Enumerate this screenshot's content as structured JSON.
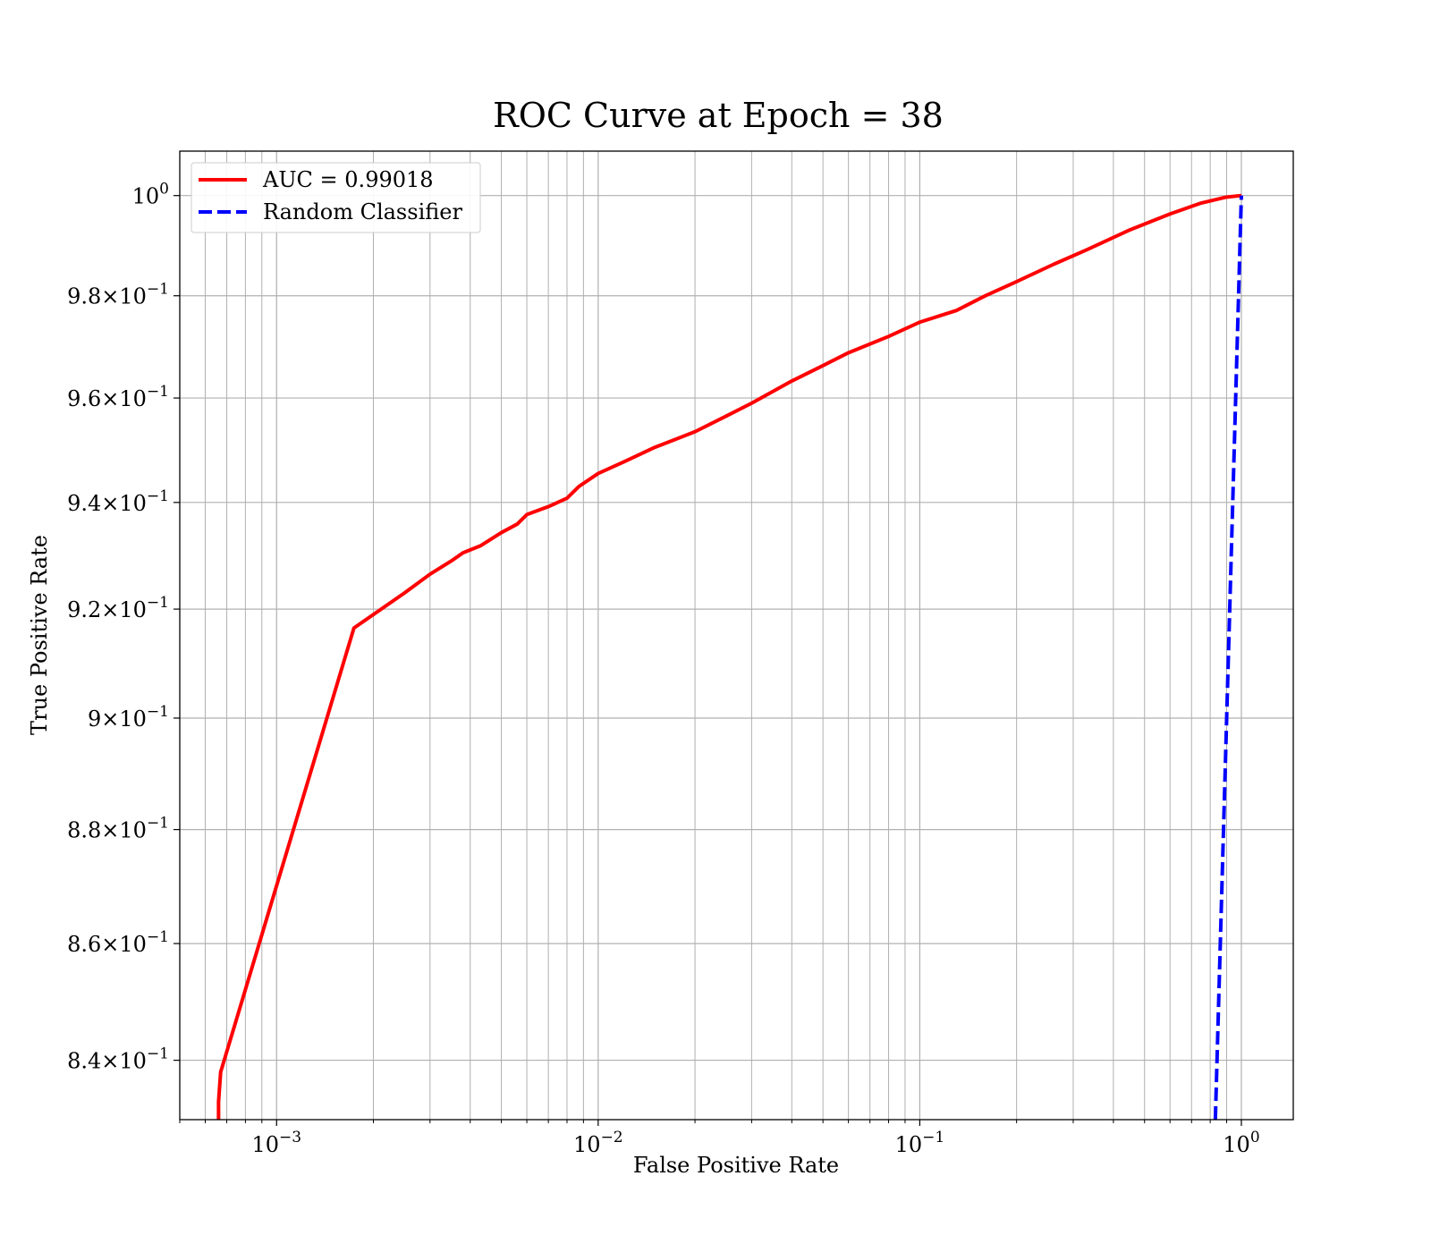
{
  "chart_data": {
    "type": "line",
    "title": "ROC Curve at Epoch = 38",
    "xlabel": "False Positive Rate",
    "ylabel": "True Positive Rate",
    "xscale": "log",
    "yscale": "log",
    "xlim": [
      0.0005,
      1.45
    ],
    "ylim": [
      0.83,
      1.009
    ],
    "grid": true,
    "grid_which": "both",
    "legend_position": "upper left",
    "x_ticks": [
      {
        "value": 0.001,
        "base": "10",
        "exp": "−3"
      },
      {
        "value": 0.01,
        "base": "10",
        "exp": "−2"
      },
      {
        "value": 0.1,
        "base": "10",
        "exp": "−1"
      },
      {
        "value": 1,
        "base": "10",
        "exp": "0"
      }
    ],
    "y_ticks": [
      {
        "value": 0.84,
        "mant": "8.4",
        "base": "10",
        "exp": "−1"
      },
      {
        "value": 0.86,
        "mant": "8.6",
        "base": "10",
        "exp": "−1"
      },
      {
        "value": 0.88,
        "mant": "8.8",
        "base": "10",
        "exp": "−1"
      },
      {
        "value": 0.9,
        "mant": "9",
        "base": "10",
        "exp": "−1"
      },
      {
        "value": 0.92,
        "mant": "9.2",
        "base": "10",
        "exp": "−1"
      },
      {
        "value": 0.94,
        "mant": "9.4",
        "base": "10",
        "exp": "−1"
      },
      {
        "value": 0.96,
        "mant": "9.6",
        "base": "10",
        "exp": "−1"
      },
      {
        "value": 0.98,
        "mant": "9.8",
        "base": "10",
        "exp": "−1"
      },
      {
        "value": 1.0,
        "mant": "",
        "base": "10",
        "exp": "0"
      }
    ],
    "series": [
      {
        "name": "AUC = 0.99018",
        "color": "#ff0000",
        "style": "solid",
        "x": [
          0.00066,
          0.00066,
          0.00067,
          0.00174,
          0.0025,
          0.003,
          0.0035,
          0.0038,
          0.0043,
          0.005,
          0.0056,
          0.006,
          0.007,
          0.008,
          0.0087,
          0.01,
          0.012,
          0.015,
          0.02,
          0.025,
          0.03,
          0.04,
          0.05,
          0.06,
          0.08,
          0.1,
          0.13,
          0.16,
          0.2,
          0.26,
          0.33,
          0.45,
          0.6,
          0.75,
          0.9,
          1.0
        ],
        "y": [
          0.83,
          0.833,
          0.838,
          0.9165,
          0.923,
          0.9265,
          0.929,
          0.9305,
          0.9318,
          0.9343,
          0.9359,
          0.9377,
          0.9392,
          0.9408,
          0.943,
          0.9455,
          0.9477,
          0.9505,
          0.9535,
          0.9565,
          0.959,
          0.9633,
          0.9663,
          0.9688,
          0.972,
          0.9748,
          0.9771,
          0.98,
          0.9828,
          0.9862,
          0.9891,
          0.9931,
          0.9963,
          0.9985,
          0.9997,
          1.0
        ]
      },
      {
        "name": "Random Classifier",
        "color": "#0000ff",
        "style": "dashed",
        "x": [
          0.83,
          1.0
        ],
        "y": [
          0.83,
          1.0
        ]
      }
    ]
  }
}
